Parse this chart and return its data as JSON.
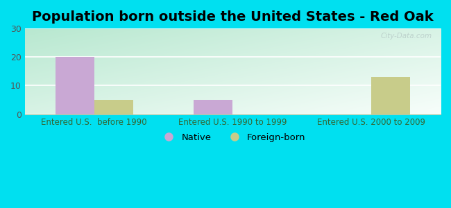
{
  "title": "Population born outside the United States - Red Oak",
  "groups": [
    "Entered U.S.  before 1990",
    "Entered U.S. 1990 to 1999",
    "Entered U.S. 2000 to 2009"
  ],
  "native_values": [
    20,
    5,
    0
  ],
  "foreign_values": [
    5,
    0,
    13
  ],
  "native_color": "#c9a8d4",
  "foreign_color": "#c8cc8a",
  "ylim": [
    0,
    30
  ],
  "yticks": [
    0,
    10,
    20,
    30
  ],
  "background_outer": "#00e0f0",
  "bar_width": 0.28,
  "title_fontsize": 14,
  "axis_label_fontsize": 8.5,
  "legend_fontsize": 9.5,
  "watermark_text": "City-Data.com",
  "gradient_colors": [
    "#c5ede0",
    "#f0fcf8"
  ],
  "grid_color": "#d0ede0",
  "tick_color": "#336633",
  "ytick_color": "#555555"
}
